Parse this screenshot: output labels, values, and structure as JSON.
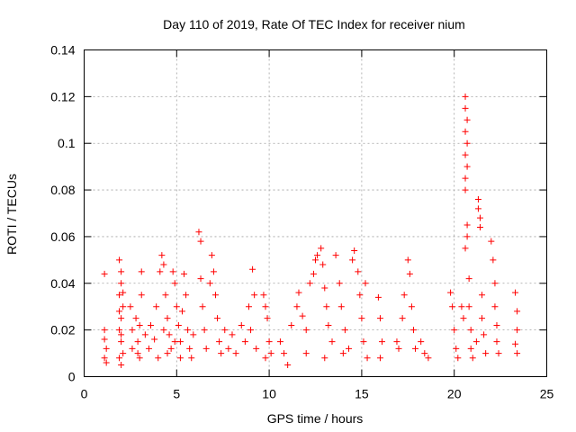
{
  "chart_data": {
    "type": "scatter",
    "title": "Day 110 of 2019, Rate Of TEC Index for receiver nium",
    "xlabel": "GPS time / hours",
    "ylabel": "ROTI / TECUs",
    "xlim": [
      0,
      25
    ],
    "ylim": [
      0,
      0.14
    ],
    "xticks": [
      0,
      5,
      10,
      15,
      20,
      25
    ],
    "yticks": [
      0,
      0.02,
      0.04,
      0.06,
      0.08,
      0.1,
      0.12,
      0.14
    ],
    "xtick_labels": [
      "0",
      "5",
      "10",
      "15",
      "20",
      "25"
    ],
    "ytick_labels": [
      "0",
      "0.02",
      "0.04",
      "0.06",
      "0.08",
      "0.1",
      "0.12",
      "0.14"
    ],
    "grid": true,
    "marker": "+",
    "color": "#ff0000",
    "series": [
      {
        "points": [
          [
            1.1,
            0.044
          ],
          [
            1.1,
            0.02
          ],
          [
            1.1,
            0.016
          ],
          [
            1.2,
            0.012
          ],
          [
            1.1,
            0.008
          ],
          [
            1.2,
            0.006
          ],
          [
            1.9,
            0.05
          ],
          [
            2.0,
            0.045
          ],
          [
            2.0,
            0.04
          ],
          [
            1.9,
            0.035
          ],
          [
            2.1,
            0.03
          ],
          [
            2.0,
            0.025
          ],
          [
            1.9,
            0.02
          ],
          [
            2.0,
            0.015
          ],
          [
            2.1,
            0.01
          ],
          [
            1.9,
            0.008
          ],
          [
            2.0,
            0.005
          ],
          [
            2.1,
            0.036
          ],
          [
            1.9,
            0.028
          ],
          [
            2.0,
            0.018
          ],
          [
            2.5,
            0.03
          ],
          [
            2.6,
            0.02
          ],
          [
            2.6,
            0.012
          ],
          [
            2.8,
            0.025
          ],
          [
            2.9,
            0.015
          ],
          [
            3.0,
            0.008
          ],
          [
            3.1,
            0.045
          ],
          [
            3.1,
            0.035
          ],
          [
            3.0,
            0.022
          ],
          [
            2.9,
            0.01
          ],
          [
            3.3,
            0.018
          ],
          [
            3.5,
            0.012
          ],
          [
            3.6,
            0.022
          ],
          [
            3.8,
            0.016
          ],
          [
            3.9,
            0.03
          ],
          [
            4.0,
            0.008
          ],
          [
            4.1,
            0.045
          ],
          [
            4.2,
            0.052
          ],
          [
            4.3,
            0.048
          ],
          [
            4.4,
            0.035
          ],
          [
            4.5,
            0.025
          ],
          [
            4.6,
            0.018
          ],
          [
            4.7,
            0.012
          ],
          [
            4.8,
            0.045
          ],
          [
            4.9,
            0.04
          ],
          [
            5.0,
            0.03
          ],
          [
            5.1,
            0.022
          ],
          [
            5.2,
            0.015
          ],
          [
            5.3,
            0.028
          ],
          [
            5.4,
            0.044
          ],
          [
            5.5,
            0.035
          ],
          [
            5.6,
            0.02
          ],
          [
            5.7,
            0.012
          ],
          [
            5.8,
            0.008
          ],
          [
            5.9,
            0.018
          ],
          [
            4.5,
            0.01
          ],
          [
            4.9,
            0.015
          ],
          [
            5.2,
            0.008
          ],
          [
            4.3,
            0.02
          ],
          [
            6.2,
            0.062
          ],
          [
            6.3,
            0.058
          ],
          [
            6.3,
            0.042
          ],
          [
            6.4,
            0.03
          ],
          [
            6.5,
            0.02
          ],
          [
            6.6,
            0.012
          ],
          [
            6.8,
            0.04
          ],
          [
            6.9,
            0.052
          ],
          [
            7.0,
            0.045
          ],
          [
            7.1,
            0.035
          ],
          [
            7.2,
            0.025
          ],
          [
            7.3,
            0.015
          ],
          [
            7.4,
            0.01
          ],
          [
            7.6,
            0.02
          ],
          [
            7.8,
            0.012
          ],
          [
            8.0,
            0.018
          ],
          [
            8.2,
            0.01
          ],
          [
            8.5,
            0.022
          ],
          [
            8.7,
            0.015
          ],
          [
            8.9,
            0.03
          ],
          [
            9.0,
            0.02
          ],
          [
            9.1,
            0.046
          ],
          [
            9.2,
            0.035
          ],
          [
            9.3,
            0.012
          ],
          [
            9.7,
            0.035
          ],
          [
            9.8,
            0.03
          ],
          [
            9.9,
            0.025
          ],
          [
            10.0,
            0.015
          ],
          [
            10.1,
            0.01
          ],
          [
            9.8,
            0.008
          ],
          [
            10.6,
            0.015
          ],
          [
            10.8,
            0.01
          ],
          [
            11.0,
            0.005
          ],
          [
            11.2,
            0.022
          ],
          [
            11.5,
            0.03
          ],
          [
            11.6,
            0.036
          ],
          [
            11.8,
            0.026
          ],
          [
            12.0,
            0.02
          ],
          [
            12.2,
            0.04
          ],
          [
            12.4,
            0.044
          ],
          [
            12.5,
            0.05
          ],
          [
            12.6,
            0.052
          ],
          [
            12.8,
            0.055
          ],
          [
            12.9,
            0.048
          ],
          [
            13.0,
            0.038
          ],
          [
            13.1,
            0.03
          ],
          [
            13.2,
            0.022
          ],
          [
            13.4,
            0.015
          ],
          [
            13.6,
            0.052
          ],
          [
            13.8,
            0.04
          ],
          [
            13.9,
            0.03
          ],
          [
            14.1,
            0.02
          ],
          [
            14.3,
            0.012
          ],
          [
            14.5,
            0.05
          ],
          [
            14.6,
            0.054
          ],
          [
            14.8,
            0.045
          ],
          [
            14.9,
            0.035
          ],
          [
            15.0,
            0.025
          ],
          [
            15.1,
            0.015
          ],
          [
            15.2,
            0.04
          ],
          [
            15.3,
            0.008
          ],
          [
            12.0,
            0.01
          ],
          [
            13.0,
            0.008
          ],
          [
            14.0,
            0.01
          ],
          [
            15.9,
            0.034
          ],
          [
            16.0,
            0.025
          ],
          [
            16.1,
            0.015
          ],
          [
            16.0,
            0.008
          ],
          [
            16.9,
            0.015
          ],
          [
            17.0,
            0.012
          ],
          [
            17.2,
            0.025
          ],
          [
            17.3,
            0.035
          ],
          [
            17.5,
            0.05
          ],
          [
            17.6,
            0.044
          ],
          [
            17.7,
            0.03
          ],
          [
            17.8,
            0.02
          ],
          [
            17.9,
            0.012
          ],
          [
            18.2,
            0.015
          ],
          [
            18.4,
            0.01
          ],
          [
            18.6,
            0.008
          ],
          [
            19.8,
            0.036
          ],
          [
            19.9,
            0.03
          ],
          [
            20.0,
            0.02
          ],
          [
            20.1,
            0.012
          ],
          [
            20.2,
            0.008
          ],
          [
            20.4,
            0.03
          ],
          [
            20.5,
            0.025
          ],
          [
            20.6,
            0.12
          ],
          [
            20.6,
            0.115
          ],
          [
            20.7,
            0.11
          ],
          [
            20.6,
            0.105
          ],
          [
            20.7,
            0.1
          ],
          [
            20.6,
            0.095
          ],
          [
            20.7,
            0.09
          ],
          [
            20.6,
            0.085
          ],
          [
            20.6,
            0.08
          ],
          [
            20.7,
            0.065
          ],
          [
            20.7,
            0.06
          ],
          [
            20.6,
            0.055
          ],
          [
            20.8,
            0.042
          ],
          [
            20.8,
            0.03
          ],
          [
            20.9,
            0.02
          ],
          [
            20.9,
            0.012
          ],
          [
            21.0,
            0.008
          ],
          [
            21.2,
            0.015
          ],
          [
            21.3,
            0.076
          ],
          [
            21.3,
            0.072
          ],
          [
            21.4,
            0.068
          ],
          [
            21.4,
            0.064
          ],
          [
            21.5,
            0.035
          ],
          [
            21.5,
            0.025
          ],
          [
            21.6,
            0.018
          ],
          [
            21.7,
            0.01
          ],
          [
            22.0,
            0.058
          ],
          [
            22.1,
            0.05
          ],
          [
            22.2,
            0.04
          ],
          [
            22.2,
            0.03
          ],
          [
            22.3,
            0.022
          ],
          [
            22.3,
            0.015
          ],
          [
            22.4,
            0.01
          ],
          [
            23.3,
            0.036
          ],
          [
            23.4,
            0.028
          ],
          [
            23.4,
            0.02
          ],
          [
            23.3,
            0.014
          ],
          [
            23.4,
            0.01
          ]
        ]
      }
    ]
  }
}
